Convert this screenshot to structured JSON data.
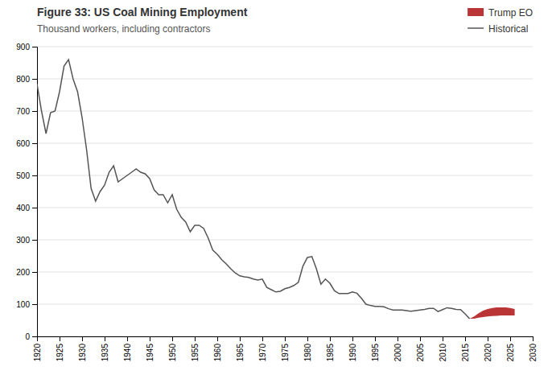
{
  "chart_data": {
    "type": "line",
    "title": "Figure 33: US Coal Mining Employment",
    "subtitle": "Thousand workers, including contractors",
    "series": [
      {
        "name": "Historical",
        "type": "line",
        "color": "#555555",
        "x": [
          1920,
          1921,
          1922,
          1923,
          1924,
          1925,
          1926,
          1927,
          1928,
          1929,
          1930,
          1931,
          1932,
          1933,
          1934,
          1935,
          1936,
          1937,
          1938,
          1939,
          1940,
          1941,
          1942,
          1943,
          1944,
          1945,
          1946,
          1947,
          1948,
          1949,
          1950,
          1951,
          1952,
          1953,
          1954,
          1955,
          1956,
          1957,
          1958,
          1959,
          1960,
          1961,
          1962,
          1963,
          1964,
          1965,
          1966,
          1967,
          1968,
          1969,
          1970,
          1971,
          1972,
          1973,
          1974,
          1975,
          1976,
          1977,
          1978,
          1979,
          1980,
          1981,
          1982,
          1983,
          1984,
          1985,
          1986,
          1987,
          1988,
          1989,
          1990,
          1991,
          1992,
          1993,
          1994,
          1995,
          1996,
          1997,
          1998,
          1999,
          2000,
          2001,
          2002,
          2003,
          2004,
          2005,
          2006,
          2007,
          2008,
          2009,
          2010,
          2011,
          2012,
          2013,
          2014,
          2015,
          2016
        ],
        "values": [
          784,
          700,
          630,
          695,
          700,
          760,
          840,
          860,
          800,
          760,
          680,
          580,
          460,
          420,
          450,
          470,
          510,
          530,
          480,
          490,
          500,
          510,
          520,
          510,
          505,
          490,
          455,
          440,
          440,
          415,
          440,
          395,
          370,
          355,
          325,
          345,
          345,
          335,
          305,
          268,
          255,
          238,
          225,
          210,
          197,
          188,
          185,
          183,
          178,
          175,
          178,
          152,
          145,
          138,
          140,
          148,
          152,
          158,
          168,
          218,
          245,
          248,
          210,
          162,
          178,
          165,
          142,
          133,
          133,
          133,
          138,
          134,
          118,
          100,
          96,
          93,
          93,
          92,
          86,
          82,
          82,
          82,
          80,
          78,
          80,
          82,
          84,
          87,
          87,
          77,
          83,
          89,
          87,
          84,
          83,
          70,
          55
        ]
      },
      {
        "name": "Trump EO",
        "type": "area",
        "color": "#b22020",
        "x": [
          2016,
          2017,
          2018,
          2019,
          2020,
          2021,
          2022,
          2023,
          2024,
          2025,
          2026
        ],
        "lower": [
          55,
          55,
          58,
          60,
          62,
          63,
          64,
          65,
          65,
          65,
          65
        ],
        "upper": [
          55,
          62,
          72,
          80,
          85,
          88,
          90,
          90,
          90,
          88,
          85
        ]
      }
    ],
    "xlim": [
      1920,
      2030
    ],
    "xticks": [
      1920,
      1925,
      1930,
      1935,
      1940,
      1945,
      1950,
      1955,
      1960,
      1965,
      1970,
      1975,
      1980,
      1985,
      1990,
      1995,
      2000,
      2005,
      2010,
      2015,
      2020,
      2025,
      2030
    ],
    "ylim": [
      0,
      900
    ],
    "yticks": [
      0,
      100,
      200,
      300,
      400,
      500,
      600,
      700,
      800,
      900
    ],
    "grid": true,
    "legend": "upper right"
  }
}
